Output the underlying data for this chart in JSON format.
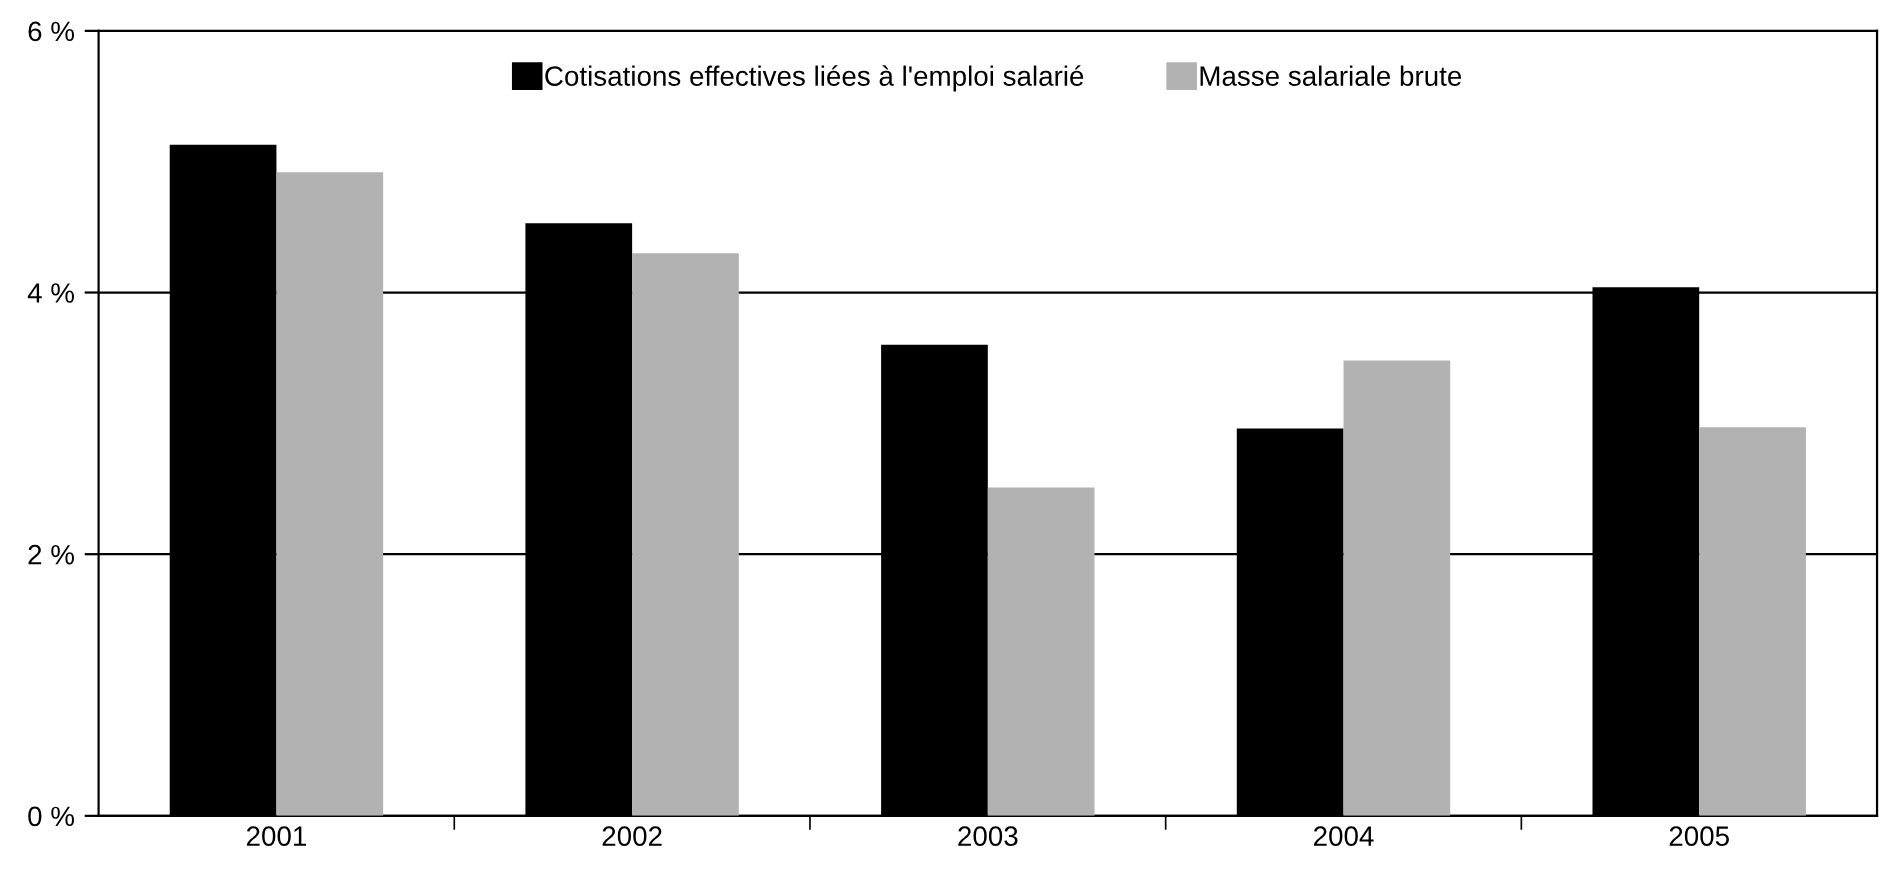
{
  "chart_data": {
    "type": "bar",
    "categories": [
      "2001",
      "2002",
      "2003",
      "2004",
      "2005"
    ],
    "series": [
      {
        "name": "Cotisations effectives liées à l'emploi salarié",
        "color": "#000000",
        "values": [
          5.13,
          4.53,
          3.6,
          2.96,
          4.04
        ]
      },
      {
        "name": "Masse salariale brute",
        "color": "#b2b2b2",
        "values": [
          4.92,
          4.3,
          2.51,
          3.48,
          2.97
        ]
      }
    ],
    "ylim": [
      0,
      6
    ],
    "yticks": [
      {
        "value": 0,
        "label": "0 %"
      },
      {
        "value": 2,
        "label": "2 %"
      },
      {
        "value": 4,
        "label": "4 %"
      },
      {
        "value": 6,
        "label": "6 %"
      }
    ],
    "grid": "y",
    "legend": "top"
  }
}
